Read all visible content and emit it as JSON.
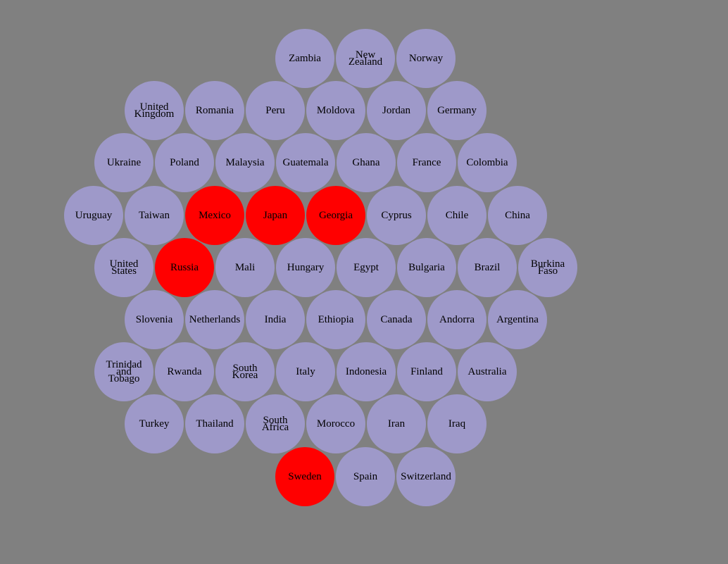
{
  "colors": {
    "background": "#808080",
    "bubble": "#9e99c9",
    "selected": "#ff0000",
    "label": "#000000"
  },
  "rows": [
    {
      "countries": [
        {
          "name": "Zambia",
          "lines": [
            "Zambia"
          ],
          "selected": false
        },
        {
          "name": "New Zealand",
          "lines": [
            "New",
            "Zealand"
          ],
          "selected": false
        },
        {
          "name": "Norway",
          "lines": [
            "Norway"
          ],
          "selected": false
        }
      ]
    },
    {
      "countries": [
        {
          "name": "United Kingdom",
          "lines": [
            "United",
            "Kingdom"
          ],
          "selected": false
        },
        {
          "name": "Romania",
          "lines": [
            "Romania"
          ],
          "selected": false
        },
        {
          "name": "Peru",
          "lines": [
            "Peru"
          ],
          "selected": false
        },
        {
          "name": "Moldova",
          "lines": [
            "Moldova"
          ],
          "selected": false
        },
        {
          "name": "Jordan",
          "lines": [
            "Jordan"
          ],
          "selected": false
        },
        {
          "name": "Germany",
          "lines": [
            "Germany"
          ],
          "selected": false
        }
      ]
    },
    {
      "countries": [
        {
          "name": "Ukraine",
          "lines": [
            "Ukraine"
          ],
          "selected": false
        },
        {
          "name": "Poland",
          "lines": [
            "Poland"
          ],
          "selected": false
        },
        {
          "name": "Malaysia",
          "lines": [
            "Malaysia"
          ],
          "selected": false
        },
        {
          "name": "Guatemala",
          "lines": [
            "Guatemala"
          ],
          "selected": false
        },
        {
          "name": "Ghana",
          "lines": [
            "Ghana"
          ],
          "selected": false
        },
        {
          "name": "France",
          "lines": [
            "France"
          ],
          "selected": false
        },
        {
          "name": "Colombia",
          "lines": [
            "Colombia"
          ],
          "selected": false
        }
      ]
    },
    {
      "countries": [
        {
          "name": "Uruguay",
          "lines": [
            "Uruguay"
          ],
          "selected": false
        },
        {
          "name": "Taiwan",
          "lines": [
            "Taiwan"
          ],
          "selected": false
        },
        {
          "name": "Mexico",
          "lines": [
            "Mexico"
          ],
          "selected": true
        },
        {
          "name": "Japan",
          "lines": [
            "Japan"
          ],
          "selected": true
        },
        {
          "name": "Georgia",
          "lines": [
            "Georgia"
          ],
          "selected": true
        },
        {
          "name": "Cyprus",
          "lines": [
            "Cyprus"
          ],
          "selected": false
        },
        {
          "name": "Chile",
          "lines": [
            "Chile"
          ],
          "selected": false
        },
        {
          "name": "China",
          "lines": [
            "China"
          ],
          "selected": false
        }
      ]
    },
    {
      "countries": [
        {
          "name": "United States",
          "lines": [
            "United",
            "States"
          ],
          "selected": false
        },
        {
          "name": "Russia",
          "lines": [
            "Russia"
          ],
          "selected": true
        },
        {
          "name": "Mali",
          "lines": [
            "Mali"
          ],
          "selected": false
        },
        {
          "name": "Hungary",
          "lines": [
            "Hungary"
          ],
          "selected": false
        },
        {
          "name": "Egypt",
          "lines": [
            "Egypt"
          ],
          "selected": false
        },
        {
          "name": "Bulgaria",
          "lines": [
            "Bulgaria"
          ],
          "selected": false
        },
        {
          "name": "Brazil",
          "lines": [
            "Brazil"
          ],
          "selected": false
        },
        {
          "name": "Burkina Faso",
          "lines": [
            "Burkina",
            "Faso"
          ],
          "selected": false
        }
      ]
    },
    {
      "countries": [
        {
          "name": "Slovenia",
          "lines": [
            "Slovenia"
          ],
          "selected": false
        },
        {
          "name": "Netherlands",
          "lines": [
            "Netherlands"
          ],
          "selected": false
        },
        {
          "name": "India",
          "lines": [
            "India"
          ],
          "selected": false
        },
        {
          "name": "Ethiopia",
          "lines": [
            "Ethiopia"
          ],
          "selected": false
        },
        {
          "name": "Canada",
          "lines": [
            "Canada"
          ],
          "selected": false
        },
        {
          "name": "Andorra",
          "lines": [
            "Andorra"
          ],
          "selected": false
        },
        {
          "name": "Argentina",
          "lines": [
            "Argentina"
          ],
          "selected": false
        }
      ]
    },
    {
      "countries": [
        {
          "name": "Trinidad and Tobago",
          "lines": [
            "Trinidad",
            "and",
            "Tobago"
          ],
          "selected": false
        },
        {
          "name": "Rwanda",
          "lines": [
            "Rwanda"
          ],
          "selected": false
        },
        {
          "name": "South Korea",
          "lines": [
            "South",
            "Korea"
          ],
          "selected": false
        },
        {
          "name": "Italy",
          "lines": [
            "Italy"
          ],
          "selected": false
        },
        {
          "name": "Indonesia",
          "lines": [
            "Indonesia"
          ],
          "selected": false
        },
        {
          "name": "Finland",
          "lines": [
            "Finland"
          ],
          "selected": false
        },
        {
          "name": "Australia",
          "lines": [
            "Australia"
          ],
          "selected": false
        }
      ]
    },
    {
      "countries": [
        {
          "name": "Turkey",
          "lines": [
            "Turkey"
          ],
          "selected": false
        },
        {
          "name": "Thailand",
          "lines": [
            "Thailand"
          ],
          "selected": false
        },
        {
          "name": "South Africa",
          "lines": [
            "South",
            "Africa"
          ],
          "selected": false
        },
        {
          "name": "Morocco",
          "lines": [
            "Morocco"
          ],
          "selected": false
        },
        {
          "name": "Iran",
          "lines": [
            "Iran"
          ],
          "selected": false
        },
        {
          "name": "Iraq",
          "lines": [
            "Iraq"
          ],
          "selected": false
        }
      ]
    },
    {
      "countries": [
        {
          "name": "Sweden",
          "lines": [
            "Sweden"
          ],
          "selected": true
        },
        {
          "name": "Spain",
          "lines": [
            "Spain"
          ],
          "selected": false
        },
        {
          "name": "Switzerland",
          "lines": [
            "Switzerland"
          ],
          "selected": false
        }
      ]
    }
  ]
}
